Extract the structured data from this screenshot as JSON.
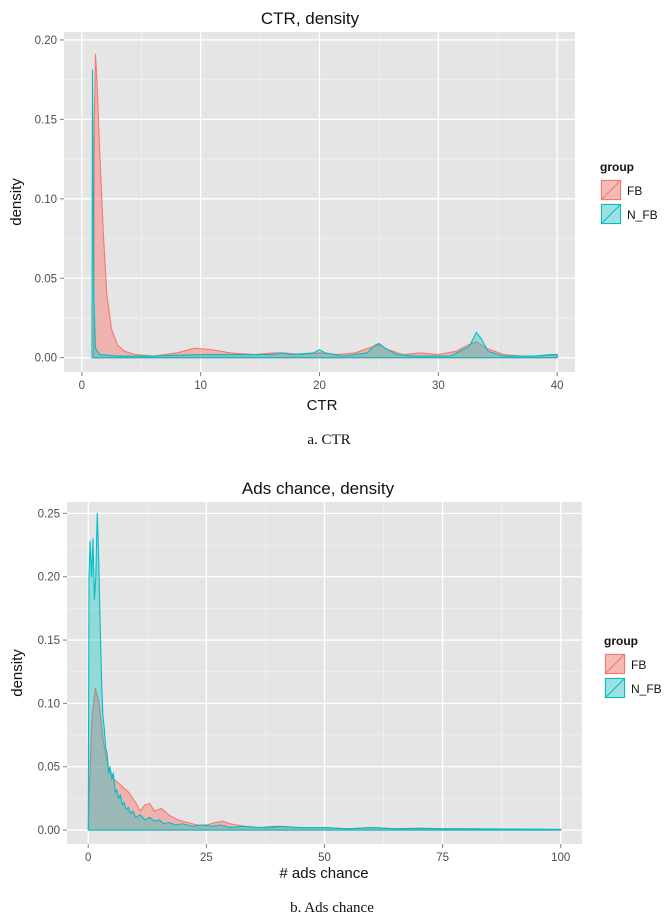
{
  "chart_data": [
    {
      "type": "area",
      "title": "CTR, density",
      "xlabel": "CTR",
      "ylabel": "density",
      "caption": "a. CTR",
      "xlim": [
        -1.5,
        41.5
      ],
      "ylim": [
        -0.009,
        0.205
      ],
      "x_ticks": [
        0,
        10,
        20,
        30,
        40
      ],
      "x_tick_labels": [
        "0",
        "10",
        "20",
        "30",
        "40"
      ],
      "y_ticks": [
        0.0,
        0.05,
        0.1,
        0.15,
        0.2
      ],
      "y_tick_labels": [
        "0.00",
        "0.05",
        "0.10",
        "0.15",
        "0.20"
      ],
      "grid": true,
      "legend": {
        "title": "group",
        "position": "right"
      },
      "series": [
        {
          "name": "FB",
          "color": "#F8766D",
          "points": [
            [
              1.0,
              0.0
            ],
            [
              1.05,
              0.15
            ],
            [
              1.15,
              0.191
            ],
            [
              1.3,
              0.17
            ],
            [
              1.5,
              0.13
            ],
            [
              1.8,
              0.08
            ],
            [
              2.1,
              0.04
            ],
            [
              2.5,
              0.018
            ],
            [
              3.0,
              0.008
            ],
            [
              3.6,
              0.004
            ],
            [
              4.5,
              0.002
            ],
            [
              6.0,
              0.001
            ],
            [
              8.0,
              0.003
            ],
            [
              9.5,
              0.006
            ],
            [
              11.0,
              0.005
            ],
            [
              12.5,
              0.003
            ],
            [
              14.5,
              0.002
            ],
            [
              16.0,
              0.003
            ],
            [
              17.0,
              0.003
            ],
            [
              18.5,
              0.002
            ],
            [
              20.0,
              0.003
            ],
            [
              21.5,
              0.002
            ],
            [
              23.0,
              0.003
            ],
            [
              24.5,
              0.007
            ],
            [
              25.0,
              0.008
            ],
            [
              25.8,
              0.005
            ],
            [
              27.0,
              0.002
            ],
            [
              28.5,
              0.003
            ],
            [
              30.0,
              0.002
            ],
            [
              31.5,
              0.004
            ],
            [
              32.5,
              0.008
            ],
            [
              33.2,
              0.01
            ],
            [
              34.0,
              0.006
            ],
            [
              35.5,
              0.002
            ],
            [
              37.0,
              0.001
            ],
            [
              38.5,
              0.001
            ],
            [
              40.0,
              0.002
            ],
            [
              40.0,
              0.0
            ]
          ]
        },
        {
          "name": "N_FB",
          "color": "#00BFC4",
          "points": [
            [
              0.85,
              0.0
            ],
            [
              0.9,
              0.181
            ],
            [
              0.95,
              0.12
            ],
            [
              1.0,
              0.04
            ],
            [
              1.15,
              0.006
            ],
            [
              1.5,
              0.002
            ],
            [
              3.0,
              0.001
            ],
            [
              6.0,
              0.001
            ],
            [
              10.0,
              0.002
            ],
            [
              14.0,
              0.002
            ],
            [
              16.0,
              0.002
            ],
            [
              16.8,
              0.003
            ],
            [
              17.5,
              0.002
            ],
            [
              19.5,
              0.003
            ],
            [
              20.0,
              0.005
            ],
            [
              20.5,
              0.003
            ],
            [
              22.0,
              0.001
            ],
            [
              24.0,
              0.003
            ],
            [
              24.7,
              0.008
            ],
            [
              25.0,
              0.009
            ],
            [
              25.5,
              0.006
            ],
            [
              26.5,
              0.002
            ],
            [
              28.0,
              0.001
            ],
            [
              31.0,
              0.001
            ],
            [
              32.6,
              0.007
            ],
            [
              33.2,
              0.016
            ],
            [
              33.6,
              0.012
            ],
            [
              34.2,
              0.004
            ],
            [
              35.5,
              0.001
            ],
            [
              38.0,
              0.001
            ],
            [
              39.5,
              0.002
            ],
            [
              40.0,
              0.002
            ],
            [
              40.0,
              0.0
            ]
          ]
        }
      ]
    },
    {
      "type": "area",
      "title": "Ads chance, density",
      "xlabel": "# ads chance",
      "ylabel": "density",
      "caption": "b. Ads chance",
      "xlim": [
        -4.5,
        104.5
      ],
      "ylim": [
        -0.011,
        0.259
      ],
      "x_ticks": [
        0,
        25,
        50,
        75,
        100
      ],
      "x_tick_labels": [
        "0",
        "25",
        "50",
        "75",
        "100"
      ],
      "y_ticks": [
        0.0,
        0.05,
        0.1,
        0.15,
        0.2,
        0.25
      ],
      "y_tick_labels": [
        "0.00",
        "0.05",
        "0.10",
        "0.15",
        "0.20",
        "0.25"
      ],
      "grid": true,
      "legend": {
        "title": "group",
        "position": "right"
      },
      "series": [
        {
          "name": "FB",
          "color": "#F8766D",
          "points": [
            [
              0.0,
              0.0
            ],
            [
              0.3,
              0.04
            ],
            [
              0.8,
              0.09
            ],
            [
              1.5,
              0.112
            ],
            [
              2.3,
              0.1
            ],
            [
              3.2,
              0.07
            ],
            [
              4.2,
              0.05
            ],
            [
              5.5,
              0.04
            ],
            [
              7.0,
              0.035
            ],
            [
              8.5,
              0.03
            ],
            [
              10.0,
              0.022
            ],
            [
              11.0,
              0.015
            ],
            [
              12.0,
              0.02
            ],
            [
              13.0,
              0.021
            ],
            [
              14.0,
              0.015
            ],
            [
              15.5,
              0.017
            ],
            [
              17.0,
              0.012
            ],
            [
              19.0,
              0.008
            ],
            [
              21.0,
              0.006
            ],
            [
              23.0,
              0.004
            ],
            [
              25.0,
              0.004
            ],
            [
              27.0,
              0.006
            ],
            [
              28.5,
              0.007
            ],
            [
              30.0,
              0.005
            ],
            [
              33.0,
              0.003
            ],
            [
              36.0,
              0.002
            ],
            [
              39.0,
              0.002
            ],
            [
              41.0,
              0.003
            ],
            [
              44.0,
              0.002
            ],
            [
              50.0,
              0.002
            ],
            [
              55.0,
              0.001
            ],
            [
              60.0,
              0.002
            ],
            [
              65.0,
              0.001
            ],
            [
              72.0,
              0.001
            ],
            [
              80.0,
              0.001
            ],
            [
              90.0,
              0.0005
            ],
            [
              100.0,
              0.0005
            ],
            [
              100.0,
              0.0
            ]
          ]
        },
        {
          "name": "N_FB",
          "color": "#00BFC4",
          "points": [
            [
              0.0,
              0.0
            ],
            [
              0.15,
              0.2
            ],
            [
              0.4,
              0.228
            ],
            [
              0.7,
              0.2
            ],
            [
              1.0,
              0.23
            ],
            [
              1.3,
              0.182
            ],
            [
              1.6,
              0.2
            ],
            [
              1.9,
              0.25
            ],
            [
              2.2,
              0.215
            ],
            [
              2.5,
              0.165
            ],
            [
              2.8,
              0.12
            ],
            [
              3.1,
              0.09
            ],
            [
              3.4,
              0.08
            ],
            [
              3.7,
              0.065
            ],
            [
              4.0,
              0.06
            ],
            [
              4.3,
              0.045
            ],
            [
              4.6,
              0.05
            ],
            [
              5.0,
              0.04
            ],
            [
              5.3,
              0.045
            ],
            [
              5.7,
              0.03
            ],
            [
              6.0,
              0.032
            ],
            [
              6.4,
              0.025
            ],
            [
              6.8,
              0.028
            ],
            [
              7.2,
              0.02
            ],
            [
              7.6,
              0.022
            ],
            [
              8.0,
              0.016
            ],
            [
              8.5,
              0.018
            ],
            [
              9.0,
              0.013
            ],
            [
              9.5,
              0.015
            ],
            [
              10.0,
              0.01
            ],
            [
              11.0,
              0.012
            ],
            [
              12.0,
              0.008
            ],
            [
              13.0,
              0.01
            ],
            [
              14.0,
              0.007
            ],
            [
              15.0,
              0.008
            ],
            [
              16.0,
              0.005
            ],
            [
              17.0,
              0.006
            ],
            [
              18.5,
              0.004
            ],
            [
              20.0,
              0.005
            ],
            [
              22.0,
              0.003
            ],
            [
              24.0,
              0.004
            ],
            [
              26.0,
              0.003
            ],
            [
              28.0,
              0.004
            ],
            [
              30.0,
              0.002
            ],
            [
              33.0,
              0.003
            ],
            [
              36.0,
              0.002
            ],
            [
              40.0,
              0.003
            ],
            [
              45.0,
              0.002
            ],
            [
              50.0,
              0.002
            ],
            [
              55.0,
              0.001
            ],
            [
              60.0,
              0.002
            ],
            [
              65.0,
              0.001
            ],
            [
              70.0,
              0.0015
            ],
            [
              75.0,
              0.001
            ],
            [
              80.0,
              0.001
            ],
            [
              90.0,
              0.0008
            ],
            [
              100.0,
              0.0005
            ],
            [
              100.0,
              0.0
            ]
          ]
        }
      ]
    }
  ]
}
